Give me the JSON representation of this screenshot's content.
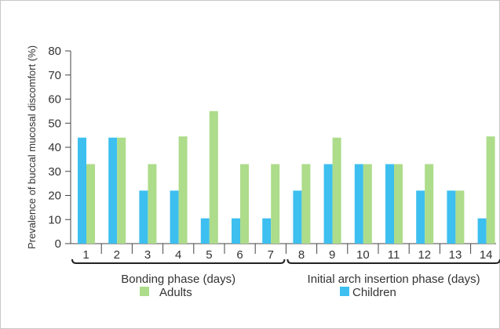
{
  "chart_data": {
    "type": "bar",
    "ylabel": "Prevalence of buccal mucosal discomfort (%)",
    "ylim": [
      0,
      80
    ],
    "yticks": [
      0,
      10,
      20,
      30,
      40,
      50,
      60,
      70,
      80
    ],
    "categories": [
      "1",
      "2",
      "3",
      "4",
      "5",
      "6",
      "7",
      "8",
      "9",
      "10",
      "11",
      "12",
      "13",
      "14"
    ],
    "series": [
      {
        "name": "Children",
        "color": "#3dbff0",
        "values": [
          44,
          44,
          22,
          22,
          10.5,
          10.5,
          10.5,
          22,
          33,
          33,
          33,
          22,
          22,
          10.5
        ]
      },
      {
        "name": "Adults",
        "color": "#addc8a",
        "values": [
          33,
          44,
          33,
          44.5,
          55,
          33,
          33,
          33,
          44,
          33,
          33,
          33,
          22,
          44.5
        ]
      }
    ],
    "groups": [
      {
        "label": "Bonding phase (days)",
        "from": 0,
        "to": 6
      },
      {
        "label": "Initial arch insertion phase (days)",
        "from": 7,
        "to": 13
      }
    ],
    "legend": [
      {
        "name": "Adults",
        "color": "#addc8a"
      },
      {
        "name": "Children",
        "color": "#3dbff0"
      }
    ],
    "legend_position": "bottom",
    "grid": false
  }
}
